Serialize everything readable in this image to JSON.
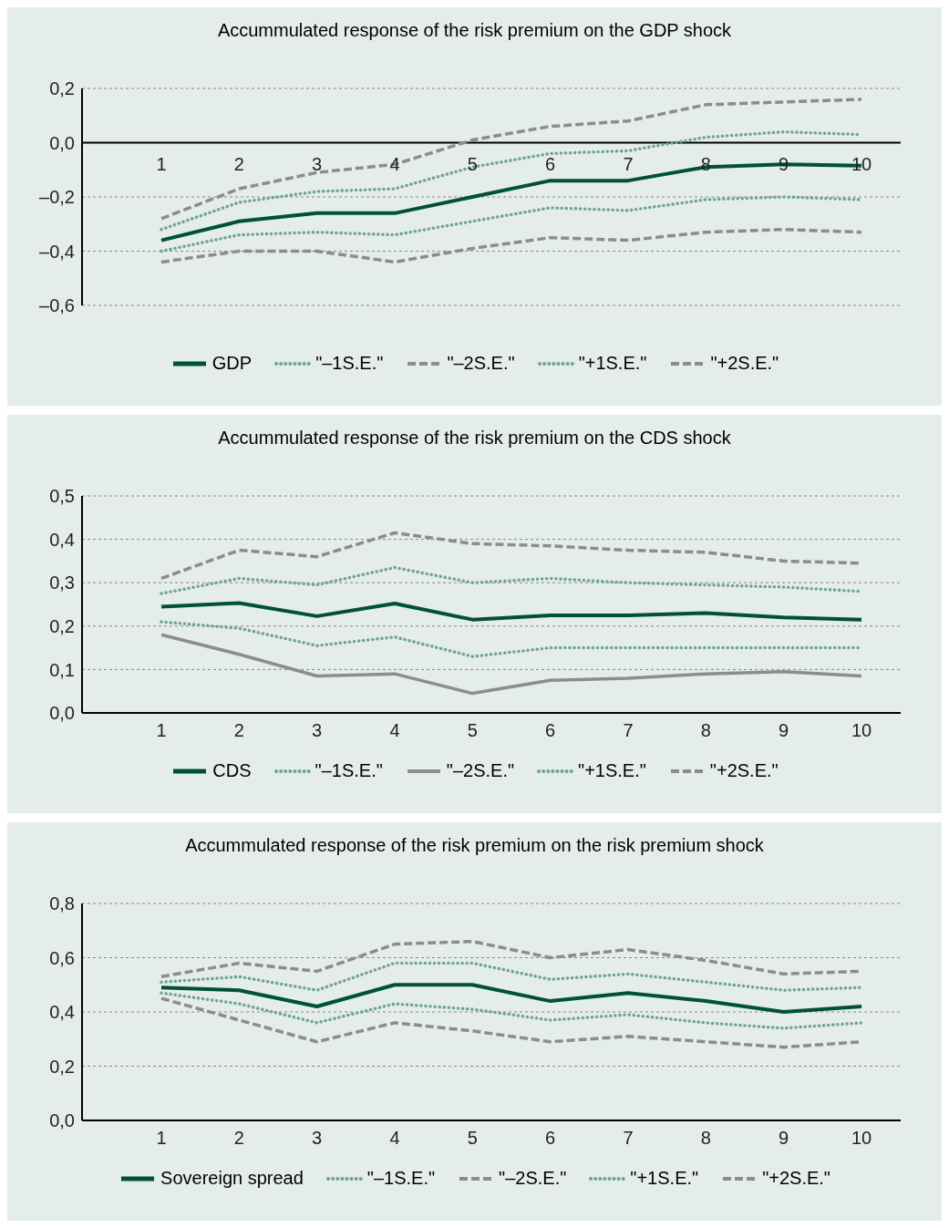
{
  "chart_data": [
    {
      "type": "line",
      "title": "Accummulated response of the risk premium on the GDP shock",
      "categories": [
        "1",
        "2",
        "3",
        "4",
        "5",
        "6",
        "7",
        "8",
        "9",
        "10"
      ],
      "ylim": [
        -0.6,
        0.2
      ],
      "yticks": [
        {
          "value": -0.6,
          "label": "–0,6"
        },
        {
          "value": -0.4,
          "label": "–0,4"
        },
        {
          "value": -0.2,
          "label": "–0,2"
        },
        {
          "value": 0,
          "label": "0,0"
        },
        {
          "value": 0.2,
          "label": "0,2"
        }
      ],
      "grid": "y",
      "legend": "bottom",
      "series": [
        {
          "name": "GDP",
          "color": "#005233",
          "line_style": "solid",
          "values": [
            -0.36,
            -0.29,
            -0.26,
            -0.26,
            -0.2,
            -0.14,
            -0.14,
            -0.09,
            -0.08,
            -0.085
          ]
        },
        {
          "name": "\"–1S.E.\"",
          "color": "#6fa58f",
          "line_style": "dotted",
          "values": [
            -0.4,
            -0.34,
            -0.33,
            -0.34,
            -0.29,
            -0.24,
            -0.25,
            -0.21,
            -0.2,
            -0.21
          ]
        },
        {
          "name": "\"–2S.E.\"",
          "color": "#8c8c8c",
          "line_style": "dashed",
          "values": [
            -0.44,
            -0.4,
            -0.4,
            -0.44,
            -0.39,
            -0.35,
            -0.36,
            -0.33,
            -0.32,
            -0.33
          ]
        },
        {
          "name": "\"+1S.E.\"",
          "color": "#6fa58f",
          "line_style": "dotted",
          "values": [
            -0.32,
            -0.22,
            -0.18,
            -0.17,
            -0.09,
            -0.04,
            -0.03,
            0.02,
            0.04,
            0.03
          ]
        },
        {
          "name": "\"+2S.E.\"",
          "color": "#8c8c8c",
          "line_style": "dashed",
          "values": [
            -0.28,
            -0.17,
            -0.11,
            -0.08,
            0.01,
            0.06,
            0.08,
            0.14,
            0.15,
            0.16
          ]
        }
      ]
    },
    {
      "type": "line",
      "title": "Accummulated response of the risk premium on the CDS shock",
      "categories": [
        "1",
        "2",
        "3",
        "4",
        "5",
        "6",
        "7",
        "8",
        "9",
        "10"
      ],
      "ylim": [
        0,
        0.5
      ],
      "yticks": [
        {
          "value": 0,
          "label": "0,0"
        },
        {
          "value": 0.1,
          "label": "0,1"
        },
        {
          "value": 0.2,
          "label": "0,2"
        },
        {
          "value": 0.3,
          "label": "0,3"
        },
        {
          "value": 0.4,
          "label": "0,4"
        },
        {
          "value": 0.5,
          "label": "0,5"
        }
      ],
      "grid": "y",
      "legend": "bottom",
      "series": [
        {
          "name": "CDS",
          "color": "#005233",
          "line_style": "solid",
          "values": [
            0.245,
            0.253,
            0.223,
            0.252,
            0.215,
            0.225,
            0.225,
            0.23,
            0.22,
            0.215
          ]
        },
        {
          "name": "\"–1S.E.\"",
          "color": "#6fa58f",
          "line_style": "dotted",
          "values": [
            0.21,
            0.195,
            0.155,
            0.175,
            0.13,
            0.15,
            0.15,
            0.15,
            0.15,
            0.15
          ]
        },
        {
          "name": "\"–2S.E.\"",
          "color": "#8c8c8c",
          "line_style": "solid",
          "values": [
            0.18,
            0.135,
            0.085,
            0.09,
            0.045,
            0.075,
            0.08,
            0.09,
            0.095,
            0.085
          ]
        },
        {
          "name": "\"+1S.E.\"",
          "color": "#6fa58f",
          "line_style": "dotted",
          "values": [
            0.275,
            0.31,
            0.295,
            0.335,
            0.3,
            0.31,
            0.3,
            0.295,
            0.29,
            0.28
          ]
        },
        {
          "name": "\"+2S.E.\"",
          "color": "#8c8c8c",
          "line_style": "dashed",
          "values": [
            0.31,
            0.375,
            0.36,
            0.415,
            0.39,
            0.385,
            0.375,
            0.37,
            0.35,
            0.345
          ]
        }
      ]
    },
    {
      "type": "line",
      "title": "Accummulated response of the risk premium on the risk premium shock",
      "categories": [
        "1",
        "2",
        "3",
        "4",
        "5",
        "6",
        "7",
        "8",
        "9",
        "10"
      ],
      "ylim": [
        0,
        0.8
      ],
      "yticks": [
        {
          "value": 0,
          "label": "0,0"
        },
        {
          "value": 0.2,
          "label": "0,2"
        },
        {
          "value": 0.4,
          "label": "0,4"
        },
        {
          "value": 0.6,
          "label": "0,6"
        },
        {
          "value": 0.8,
          "label": "0,8"
        }
      ],
      "grid": "y",
      "legend": "bottom",
      "series": [
        {
          "name": "Sovereign spread",
          "color": "#005233",
          "line_style": "solid",
          "values": [
            0.49,
            0.48,
            0.42,
            0.5,
            0.5,
            0.44,
            0.47,
            0.44,
            0.4,
            0.42
          ]
        },
        {
          "name": "\"–1S.E.\"",
          "color": "#6fa58f",
          "line_style": "dotted",
          "values": [
            0.47,
            0.43,
            0.36,
            0.43,
            0.41,
            0.37,
            0.39,
            0.36,
            0.34,
            0.36
          ]
        },
        {
          "name": "\"–2S.E.\"",
          "color": "#8c8c8c",
          "line_style": "dashed",
          "values": [
            0.45,
            0.37,
            0.29,
            0.36,
            0.33,
            0.29,
            0.31,
            0.29,
            0.27,
            0.29
          ]
        },
        {
          "name": "\"+1S.E.\"",
          "color": "#6fa58f",
          "line_style": "dotted",
          "values": [
            0.51,
            0.53,
            0.48,
            0.58,
            0.58,
            0.52,
            0.54,
            0.51,
            0.48,
            0.49
          ]
        },
        {
          "name": "\"+2S.E.\"",
          "color": "#8c8c8c",
          "line_style": "dashed",
          "values": [
            0.53,
            0.58,
            0.55,
            0.65,
            0.66,
            0.6,
            0.63,
            0.59,
            0.54,
            0.55
          ]
        }
      ]
    }
  ]
}
